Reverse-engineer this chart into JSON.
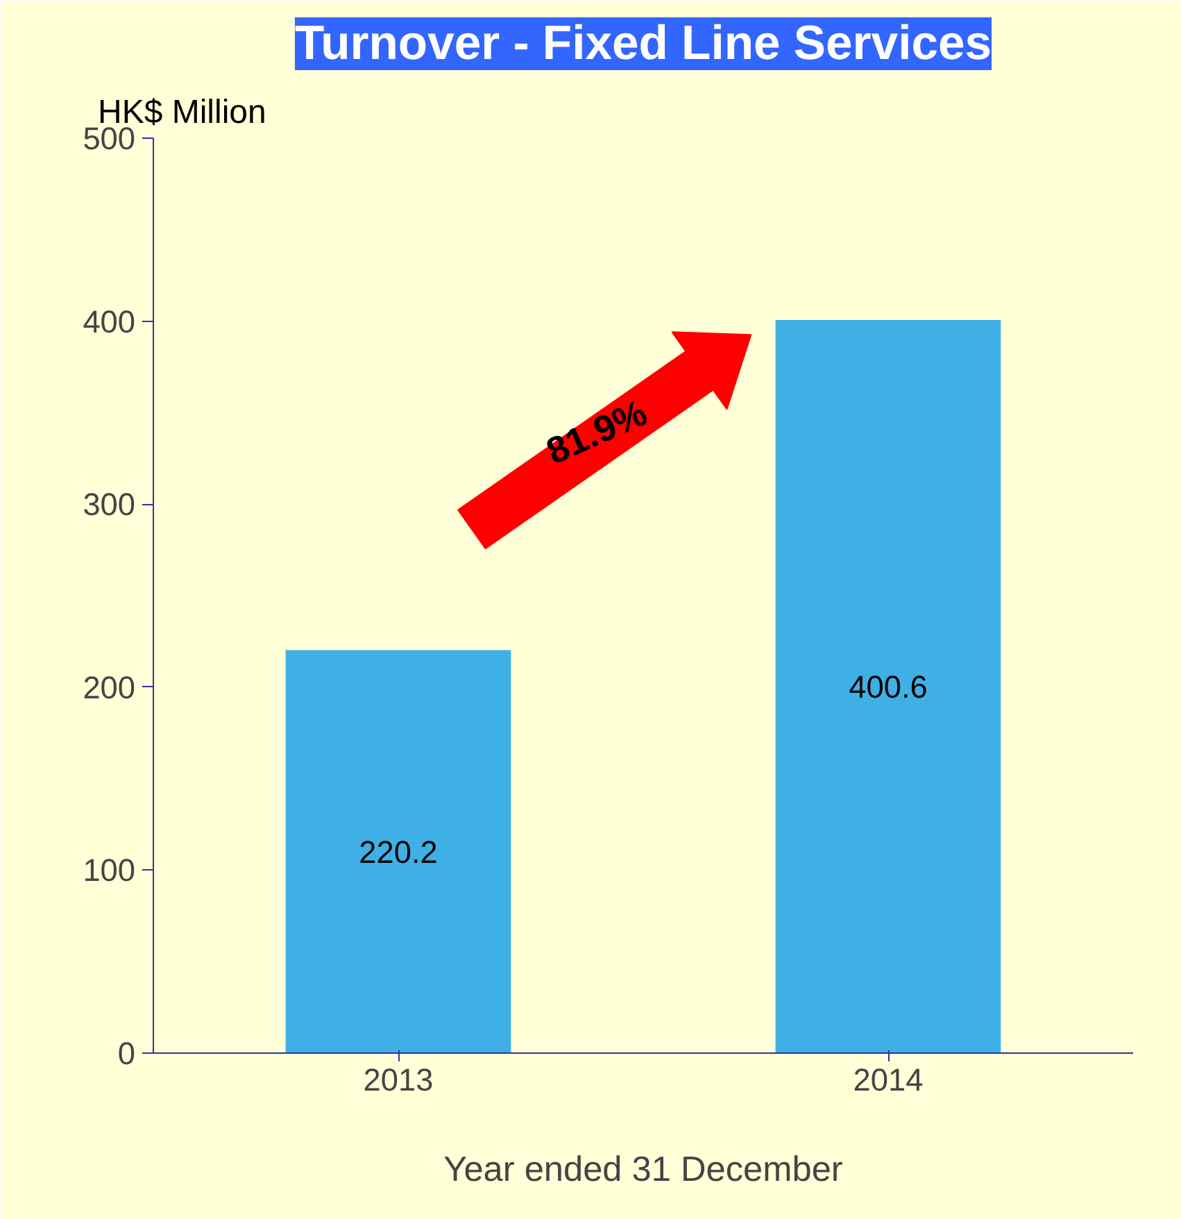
{
  "chart_data": {
    "type": "bar",
    "title": "Turnover - Fixed Line Services",
    "ylabel": "HK$ Million",
    "xlabel": "Year ended 31 December",
    "categories": [
      "2013",
      "2014"
    ],
    "values": [
      220.2,
      400.6
    ],
    "color": "#3fb0e6",
    "ylim": [
      0,
      500
    ],
    "yticks": [
      0,
      100,
      200,
      300,
      400,
      500
    ],
    "data_labels": true,
    "grid": false,
    "annotations": [
      "81.9%"
    ]
  }
}
